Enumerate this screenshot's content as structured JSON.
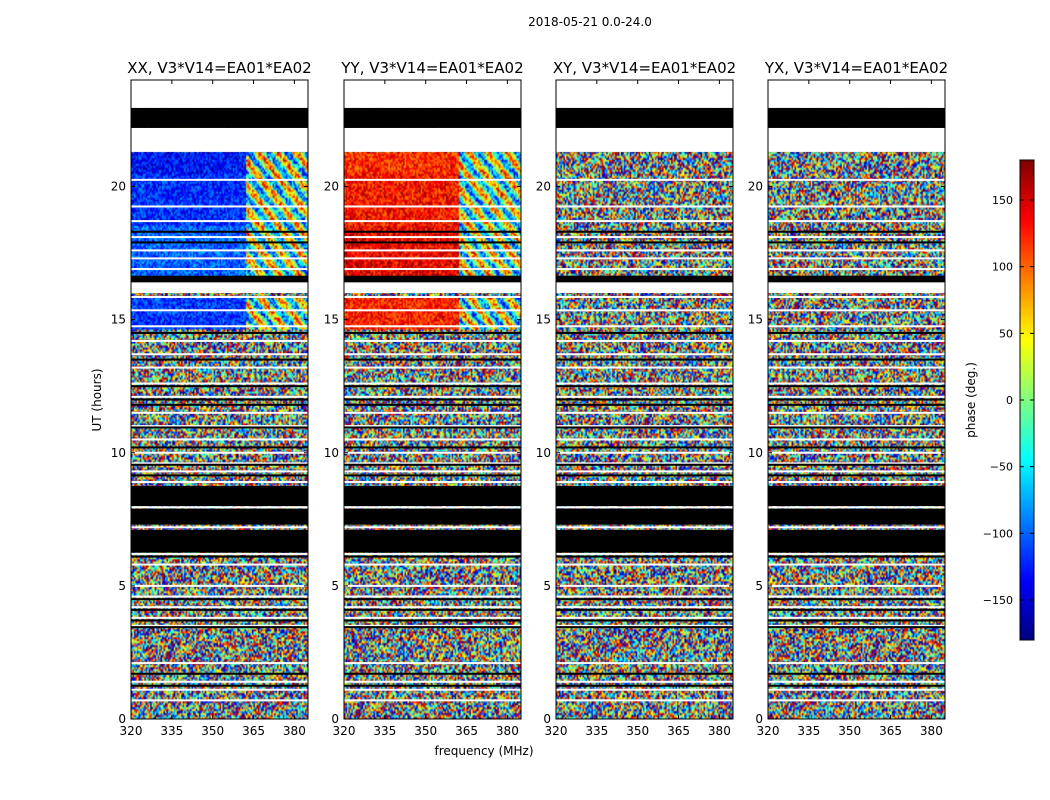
{
  "chart_data": {
    "type": "heatmap",
    "title": "2018-05-21 0.0-24.0",
    "xlabel": "frequency (MHz)",
    "ylabel": "UT (hours)",
    "x_range": [
      320,
      385
    ],
    "y_range": [
      0,
      24
    ],
    "x_ticks": [
      320,
      335,
      350,
      365,
      380
    ],
    "y_ticks": [
      0,
      5,
      10,
      15,
      20
    ],
    "grid": false,
    "colorbar": {
      "label": "phase (deg.)",
      "range": [
        -180,
        180
      ],
      "ticks": [
        -150,
        -100,
        -50,
        0,
        50,
        100,
        150
      ],
      "colormap": "jet",
      "colors": [
        "#00007f",
        "#0000ff",
        "#007fff",
        "#00ffff",
        "#7fff7f",
        "#ffff00",
        "#ff7f00",
        "#ff0000",
        "#7f0000"
      ]
    },
    "panels": [
      {
        "title": "XX, V3*V14=EA01*EA02",
        "coherent": [
          {
            "ut": [
              18.5,
              20.5
            ],
            "freq": [
              320,
              362
            ],
            "phase": -120
          },
          {
            "ut": [
              14.6,
              15.8
            ],
            "freq": [
              320,
              362
            ],
            "phase": -115
          },
          {
            "ut": [
              16.6,
              18.5
            ],
            "freq": [
              320,
              362
            ],
            "phase": -100
          },
          {
            "ut": [
              20.5,
              21.3
            ],
            "freq": [
              320,
              362
            ],
            "phase": -130
          }
        ]
      },
      {
        "title": "YY, V3*V14=EA01*EA02",
        "coherent": [
          {
            "ut": [
              18.5,
              20.5
            ],
            "freq": [
              320,
              362
            ],
            "phase": 130
          },
          {
            "ut": [
              14.6,
              15.8
            ],
            "freq": [
              320,
              362
            ],
            "phase": 125
          },
          {
            "ut": [
              16.6,
              18.5
            ],
            "freq": [
              320,
              362
            ],
            "phase": 140
          },
          {
            "ut": [
              20.5,
              21.3
            ],
            "freq": [
              320,
              362
            ],
            "phase": 120
          }
        ]
      },
      {
        "title": "XY, V3*V14=EA01*EA02",
        "coherent": []
      },
      {
        "title": "YX, V3*V14=EA01*EA02",
        "coherent": []
      }
    ],
    "empty_ut_intervals": [
      [
        21.3,
        22.2
      ],
      [
        22.95,
        24.0
      ],
      [
        16.0,
        16.6
      ]
    ],
    "black_ut_intervals": [
      [
        22.2,
        22.95
      ],
      [
        16.4,
        16.65
      ],
      [
        8.0,
        8.75
      ],
      [
        7.3,
        7.9
      ],
      [
        6.25,
        7.1
      ]
    ],
    "white_gap_ut": [
      20.25,
      19.25,
      18.7,
      18.1,
      17.6,
      17.3,
      16.9,
      15.85,
      15.35,
      14.75,
      14.2,
      13.7,
      13.2,
      12.6,
      12.1,
      11.5,
      11.0,
      10.5,
      10.0,
      9.6,
      9.3,
      8.9,
      8.4,
      6.2,
      5.8,
      5.0,
      4.6,
      4.2,
      3.8,
      3.5,
      2.1,
      1.4,
      1.1,
      0.7
    ],
    "black_line_ut": [
      18.3,
      17.9,
      16.2,
      14.5,
      13.5,
      12.5,
      12.0,
      11.8,
      10.95,
      10.2,
      9.55,
      9.15,
      6.1,
      4.5,
      4.1,
      3.7,
      3.45,
      1.7,
      1.25
    ]
  }
}
